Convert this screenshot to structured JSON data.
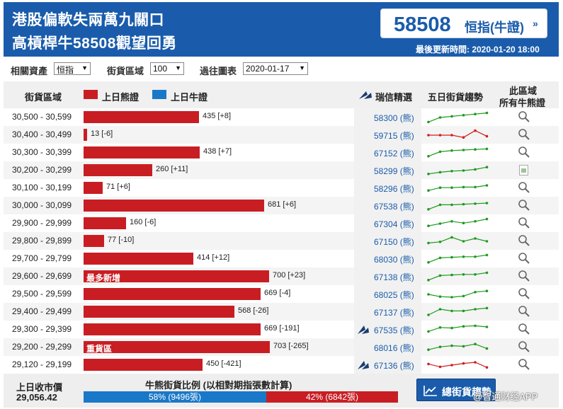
{
  "header": {
    "title_line1": "港股偏軟失兩萬九關口",
    "title_line2": "高槓桿牛58508觀望回勇",
    "featured_code": "58508",
    "featured_label": "恒指(牛證)",
    "arrow": "»",
    "updated": "最後更新時間: 2020-01-20 18:00"
  },
  "filters": {
    "asset_label": "相關資產",
    "asset_value": "恒指",
    "zone_label": "街貨區域",
    "zone_value": "100",
    "history_label": "過往圖表",
    "history_value": "2020-01-17"
  },
  "columns": {
    "range": "街貨區域",
    "bear_legend": "上日熊證",
    "bull_legend": "上日牛證",
    "pick": "瑞信精選",
    "trend": "五日街貨趨勢",
    "all_line1": "此區域",
    "all_line2": "所有牛熊證"
  },
  "colors": {
    "bear": "#c81e23",
    "bull": "#1a78c8",
    "brand": "#1a5cab",
    "trend_up": "#1e9a1e",
    "trend_down": "#d01e1e"
  },
  "bar_scale_max": 700,
  "rows": [
    {
      "range": "30,500 - 30,599",
      "value": 435,
      "value_text": "435 [+8]",
      "tag": "",
      "code": "58300 (熊)",
      "pick": false,
      "trend": "up",
      "spark": [
        0.1,
        0.5,
        0.6,
        0.7,
        0.8,
        0.9
      ],
      "action": "search"
    },
    {
      "range": "30,400 - 30,499",
      "value": 13,
      "value_text": "13 [-6]",
      "tag": "",
      "code": "59715 (熊)",
      "pick": false,
      "trend": "down",
      "spark": [
        0.5,
        0.5,
        0.5,
        0.3,
        0.9,
        0.4
      ],
      "action": "search"
    },
    {
      "range": "30,300 - 30,399",
      "value": 438,
      "value_text": "438 [+7]",
      "tag": "",
      "code": "67152 (熊)",
      "pick": false,
      "trend": "up",
      "spark": [
        0.2,
        0.6,
        0.7,
        0.75,
        0.8,
        0.85
      ],
      "action": "search"
    },
    {
      "range": "30,200 - 30,299",
      "value": 260,
      "value_text": "260 [+11]",
      "tag": "",
      "code": "58299 (熊)",
      "pick": false,
      "trend": "up",
      "spark": [
        0.2,
        0.35,
        0.45,
        0.5,
        0.6,
        0.8
      ],
      "action": "image"
    },
    {
      "range": "30,100 - 30,199",
      "value": 71,
      "value_text": "71 [+6]",
      "tag": "",
      "code": "58296 (熊)",
      "pick": false,
      "trend": "up",
      "spark": [
        0.3,
        0.55,
        0.55,
        0.6,
        0.6,
        0.75
      ],
      "action": "search"
    },
    {
      "range": "30,000 - 30,099",
      "value": 681,
      "value_text": "681 [+6]",
      "tag": "",
      "code": "67538 (熊)",
      "pick": false,
      "trend": "up",
      "spark": [
        0.2,
        0.6,
        0.6,
        0.65,
        0.7,
        0.75
      ],
      "action": "search"
    },
    {
      "range": "29,900 - 29,999",
      "value": 160,
      "value_text": "160 [-6]",
      "tag": "",
      "code": "67304 (熊)",
      "pick": false,
      "trend": "up",
      "spark": [
        0.3,
        0.5,
        0.7,
        0.55,
        0.7,
        0.9
      ],
      "action": "search"
    },
    {
      "range": "29,800 - 29,899",
      "value": 77,
      "value_text": "77 [-10]",
      "tag": "",
      "code": "67150 (熊)",
      "pick": false,
      "trend": "up",
      "spark": [
        0.35,
        0.45,
        0.85,
        0.5,
        0.75,
        0.5
      ],
      "action": "search"
    },
    {
      "range": "29,700 - 29,799",
      "value": 414,
      "value_text": "414 [+12]",
      "tag": "",
      "code": "68030 (熊)",
      "pick": false,
      "trend": "up",
      "spark": [
        0.2,
        0.6,
        0.65,
        0.7,
        0.7,
        0.85
      ],
      "action": "search"
    },
    {
      "range": "29,600 - 29,699",
      "value": 700,
      "value_text": "700 [+23]",
      "tag": "最多新增",
      "code": "67138 (熊)",
      "pick": false,
      "trend": "up",
      "spark": [
        0.2,
        0.6,
        0.65,
        0.7,
        0.7,
        0.85
      ],
      "action": "search"
    },
    {
      "range": "29,500 - 29,599",
      "value": 669,
      "value_text": "669 [-4]",
      "tag": "",
      "code": "68025 (熊)",
      "pick": false,
      "trend": "up",
      "spark": [
        0.5,
        0.3,
        0.25,
        0.35,
        0.7,
        0.8
      ],
      "action": "search"
    },
    {
      "range": "29,400 - 29,499",
      "value": 568,
      "value_text": "568 [-26]",
      "tag": "",
      "code": "67137 (熊)",
      "pick": false,
      "trend": "up",
      "spark": [
        0.25,
        0.75,
        0.6,
        0.6,
        0.75,
        0.85
      ],
      "action": "search"
    },
    {
      "range": "29,300 - 29,399",
      "value": 669,
      "value_text": "669 [-191]",
      "tag": "",
      "code": "67535 (熊)",
      "pick": true,
      "trend": "up",
      "spark": [
        0.35,
        0.7,
        0.65,
        0.8,
        0.85,
        0.75
      ],
      "action": "search"
    },
    {
      "range": "29,200 - 29,299",
      "value": 703,
      "value_text": "703 [-265]",
      "tag": "重貨區",
      "code": "68016 (熊)",
      "pick": false,
      "trend": "up",
      "spark": [
        0.3,
        0.55,
        0.65,
        0.6,
        0.8,
        0.4
      ],
      "action": "search"
    },
    {
      "range": "29,120 - 29,199",
      "value": 450,
      "value_text": "450 [-421]",
      "tag": "",
      "code": "67136 (熊)",
      "pick": true,
      "trend": "down",
      "spark": [
        0.6,
        0.35,
        0.5,
        0.65,
        0.75,
        0.3
      ],
      "action": "search"
    }
  ],
  "footer": {
    "prev_close_label": "上日收市價",
    "prev_close_value": "29,056.42",
    "ratio_title": "牛熊街貨比例 (以相對期指張數計算)",
    "bull_pct": 58,
    "bear_pct": 42,
    "bull_text": "58% (9496張)",
    "bear_text": "42% (6842張)",
    "button_label": "總街貨趨勢"
  },
  "watermark": "@智通财经APP"
}
